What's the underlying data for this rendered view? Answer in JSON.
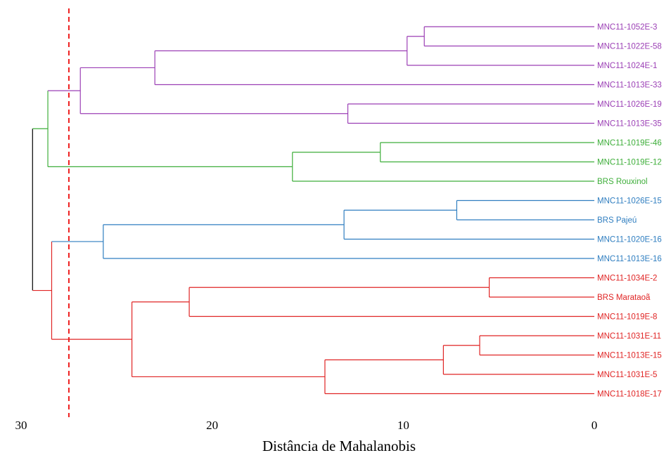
{
  "chart_data": {
    "type": "dendrogram",
    "xlabel": "Distância de Mahalanobis",
    "xlim": [
      30,
      0
    ],
    "xticks": [
      30,
      20,
      10,
      0
    ],
    "cut_line": {
      "value": 27.5,
      "color": "#ee1c1c"
    },
    "leaves": [
      {
        "label": "MNC11-1052E-3",
        "group": "purple"
      },
      {
        "label": "MNC11-1022E-58",
        "group": "purple"
      },
      {
        "label": "MNC11-1024E-1",
        "group": "purple"
      },
      {
        "label": "MNC11-1013E-33",
        "group": "purple"
      },
      {
        "label": "MNC11-1026E-19",
        "group": "purple"
      },
      {
        "label": "MNC11-1013E-35",
        "group": "purple"
      },
      {
        "label": "MNC11-1019E-46",
        "group": "green"
      },
      {
        "label": "MNC11-1019E-12",
        "group": "green"
      },
      {
        "label": "BRS Rouxinol",
        "group": "green"
      },
      {
        "label": "MNC11-1026E-15",
        "group": "blue"
      },
      {
        "label": "BRS Pajeú",
        "group": "blue"
      },
      {
        "label": "MNC11-1020E-16",
        "group": "blue"
      },
      {
        "label": "MNC11-1013E-16",
        "group": "blue"
      },
      {
        "label": "MNC11-1034E-2",
        "group": "red"
      },
      {
        "label": "BRS Marataoã",
        "group": "red"
      },
      {
        "label": "MNC11-1019E-8",
        "group": "red"
      },
      {
        "label": "MNC11-1031E-11",
        "group": "red"
      },
      {
        "label": "MNC11-1013E-15",
        "group": "red"
      },
      {
        "label": "MNC11-1031E-5",
        "group": "red"
      },
      {
        "label": "MNC11-1018E-17",
        "group": "red"
      }
    ],
    "merges": [
      {
        "id": "p1",
        "children": [
          "L0",
          "L1"
        ],
        "height": 8.9,
        "color": "purple"
      },
      {
        "id": "p2",
        "children": [
          "p1",
          "L2"
        ],
        "height": 9.8,
        "color": "purple"
      },
      {
        "id": "p3",
        "children": [
          "p2",
          "L3"
        ],
        "height": 23.0,
        "color": "purple"
      },
      {
        "id": "p4",
        "children": [
          "L4",
          "L5"
        ],
        "height": 12.9,
        "color": "purple"
      },
      {
        "id": "p5",
        "children": [
          "p3",
          "p4"
        ],
        "height": 26.9,
        "color": "purple"
      },
      {
        "id": "g1",
        "children": [
          "L6",
          "L7"
        ],
        "height": 11.2,
        "color": "green"
      },
      {
        "id": "g2",
        "children": [
          "g1",
          "L8"
        ],
        "height": 15.8,
        "color": "green"
      },
      {
        "id": "pg",
        "children": [
          "p5",
          "g2"
        ],
        "height": 28.6,
        "color": "green"
      },
      {
        "id": "b1",
        "children": [
          "L9",
          "L10"
        ],
        "height": 7.2,
        "color": "blue"
      },
      {
        "id": "b2",
        "children": [
          "b1",
          "L11"
        ],
        "height": 13.1,
        "color": "blue"
      },
      {
        "id": "b3",
        "children": [
          "b2",
          "L12"
        ],
        "height": 25.7,
        "color": "blue"
      },
      {
        "id": "r1",
        "children": [
          "L13",
          "L14"
        ],
        "height": 5.5,
        "color": "red"
      },
      {
        "id": "r2",
        "children": [
          "r1",
          "L15"
        ],
        "height": 21.2,
        "color": "red"
      },
      {
        "id": "r3",
        "children": [
          "L16",
          "L17"
        ],
        "height": 6.0,
        "color": "red"
      },
      {
        "id": "r4",
        "children": [
          "r3",
          "L18"
        ],
        "height": 7.9,
        "color": "red"
      },
      {
        "id": "r5",
        "children": [
          "r4",
          "L19"
        ],
        "height": 14.1,
        "color": "red"
      },
      {
        "id": "r6",
        "children": [
          "r2",
          "r5"
        ],
        "height": 24.2,
        "color": "red"
      },
      {
        "id": "br",
        "children": [
          "b3",
          "r6"
        ],
        "height": 28.4,
        "color": "red"
      },
      {
        "id": "root",
        "children": [
          "pg",
          "br"
        ],
        "height": 29.4,
        "color": "black"
      }
    ],
    "colors": {
      "purple": "#9b3fb5",
      "green": "#3eae3a",
      "blue": "#2f7ec0",
      "red": "#e02424",
      "black": "#000000"
    }
  }
}
